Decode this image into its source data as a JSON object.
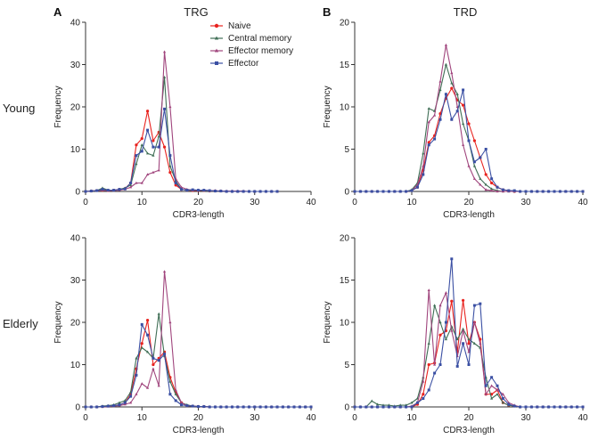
{
  "figure": {
    "panel_a": "A",
    "panel_b": "B",
    "columns": [
      "TRG",
      "TRD"
    ],
    "rows": [
      "Young",
      "Elderly"
    ]
  },
  "legend": [
    {
      "name": "Naive",
      "color": "#e8231f",
      "icon": "circle-marker-icon"
    },
    {
      "name": "Central memory",
      "color": "#3f6e55",
      "icon": "triangle-marker-icon"
    },
    {
      "name": "Effector memory",
      "color": "#a0457d",
      "icon": "triangle-marker-icon"
    },
    {
      "name": "Effector",
      "color": "#3a4fa3",
      "icon": "square-marker-icon"
    }
  ],
  "chart_data": [
    {
      "type": "line",
      "title": "TRG",
      "row": "Young",
      "xlabel": "CDR3-length",
      "ylabel": "Frequency",
      "xlim": [
        0,
        40
      ],
      "ylim": [
        0,
        40
      ],
      "xticks": [
        0,
        10,
        20,
        30,
        40
      ],
      "yticks": [
        0,
        10,
        20,
        30,
        40
      ],
      "x": [
        0,
        1,
        2,
        3,
        4,
        5,
        6,
        7,
        8,
        9,
        10,
        11,
        12,
        13,
        14,
        15,
        16,
        17,
        18,
        19,
        20,
        21,
        22,
        23,
        24,
        25,
        26,
        27,
        28,
        29,
        30,
        31,
        32,
        33,
        34
      ],
      "series": [
        {
          "name": "Naive",
          "values": [
            0,
            0.1,
            0.2,
            0.3,
            0.2,
            0.3,
            0.5,
            0.7,
            2,
            11,
            12.5,
            19,
            12,
            14,
            10.5,
            4.5,
            1.5,
            0.5,
            0.3,
            0.2,
            0.2,
            0.2,
            0.1,
            0.1,
            0.1,
            0,
            0,
            0,
            0,
            0,
            0,
            0,
            0,
            0,
            0
          ]
        },
        {
          "name": "Central memory",
          "values": [
            0,
            0.1,
            0.2,
            0.8,
            0.3,
            0.2,
            0.5,
            0.8,
            1.5,
            6.5,
            11,
            9,
            8.5,
            13,
            27,
            6,
            2.5,
            0.5,
            0.3,
            0.3,
            0.3,
            0.2,
            0.1,
            0.1,
            0.1,
            0,
            0,
            0,
            0,
            0,
            0,
            0,
            0,
            0,
            0
          ]
        },
        {
          "name": "Effector memory",
          "values": [
            0,
            0.1,
            0.2,
            0.3,
            0.2,
            0.2,
            0.3,
            0.5,
            1,
            2,
            2,
            4,
            4.5,
            5,
            33,
            20,
            3,
            1,
            0.5,
            0.3,
            0.3,
            0.3,
            0.2,
            0.2,
            0.1,
            0.1,
            0.1,
            0.1,
            0.1,
            0,
            0,
            0,
            0,
            0,
            0
          ]
        },
        {
          "name": "Effector",
          "values": [
            0,
            0.1,
            0.2,
            0.5,
            0.3,
            0.3,
            0.5,
            0.6,
            2,
            8.5,
            9.5,
            14.5,
            10.5,
            10.5,
            19.5,
            8.5,
            2,
            0.5,
            0.3,
            0.4,
            0.3,
            0.3,
            0.2,
            0.1,
            0.1,
            0,
            0,
            0,
            0,
            0,
            0,
            0,
            0,
            0,
            0
          ]
        }
      ]
    },
    {
      "type": "line",
      "title": "TRD",
      "row": "Young",
      "xlabel": "CDR3-length",
      "ylabel": "Frequency",
      "xlim": [
        0,
        40
      ],
      "ylim": [
        0,
        20
      ],
      "xticks": [
        0,
        10,
        20,
        30,
        40
      ],
      "yticks": [
        0,
        5,
        10,
        15,
        20
      ],
      "x": [
        0,
        1,
        2,
        3,
        4,
        5,
        6,
        7,
        8,
        9,
        10,
        11,
        12,
        13,
        14,
        15,
        16,
        17,
        18,
        19,
        20,
        21,
        22,
        23,
        24,
        25,
        26,
        27,
        28,
        29,
        30,
        31,
        32,
        33,
        34,
        35,
        36,
        37,
        38,
        39,
        40
      ],
      "series": [
        {
          "name": "Naive",
          "values": [
            0,
            0,
            0,
            0,
            0,
            0,
            0,
            0,
            0,
            0,
            0.1,
            0.5,
            2.5,
            5.8,
            6.6,
            9.2,
            11,
            12.2,
            10.8,
            10.2,
            8,
            6,
            4,
            2,
            1,
            0.5,
            0.2,
            0.1,
            0,
            0,
            0,
            0,
            0,
            0,
            0,
            0,
            0,
            0,
            0,
            0,
            0
          ]
        },
        {
          "name": "Central memory",
          "values": [
            0,
            0,
            0,
            0,
            0,
            0,
            0,
            0,
            0,
            0,
            0.2,
            1,
            4.5,
            9.8,
            9.5,
            12,
            15,
            12.8,
            11.5,
            8,
            6,
            3,
            1.5,
            0.8,
            0.3,
            0.1,
            0,
            0,
            0,
            0,
            0,
            0,
            0,
            0,
            0,
            0,
            0,
            0,
            0,
            0,
            0
          ]
        },
        {
          "name": "Effector memory",
          "values": [
            0,
            0,
            0,
            0,
            0,
            0,
            0,
            0,
            0,
            0,
            0.1,
            0.8,
            3,
            8.2,
            9,
            13,
            17.3,
            14,
            10,
            5.5,
            3,
            1.5,
            0.8,
            0.2,
            0.1,
            0,
            0,
            0,
            0,
            0,
            0,
            0,
            0,
            0,
            0,
            0,
            0,
            0,
            0,
            0,
            0
          ]
        },
        {
          "name": "Effector",
          "values": [
            0,
            0,
            0,
            0,
            0,
            0,
            0,
            0,
            0,
            0,
            0.1,
            0.5,
            2,
            5.5,
            6.2,
            8.5,
            11.5,
            8.5,
            9.5,
            12,
            6,
            3.5,
            4,
            5,
            1.5,
            0.5,
            0.2,
            0.1,
            0.1,
            0,
            0,
            0,
            0,
            0,
            0,
            0,
            0,
            0,
            0,
            0,
            0
          ]
        }
      ]
    },
    {
      "type": "line",
      "title": "TRG",
      "row": "Elderly",
      "xlabel": "CDR3-length",
      "ylabel": "Frequency",
      "xlim": [
        0,
        40
      ],
      "ylim": [
        0,
        40
      ],
      "xticks": [
        0,
        10,
        20,
        30,
        40
      ],
      "yticks": [
        0,
        10,
        20,
        30,
        40
      ],
      "x": [
        0,
        1,
        2,
        3,
        4,
        5,
        6,
        7,
        8,
        9,
        10,
        11,
        12,
        13,
        14,
        15,
        16,
        17,
        18,
        19,
        20,
        21,
        22,
        23,
        24,
        25,
        26,
        27,
        28,
        29,
        30,
        31,
        32,
        33,
        34,
        35,
        36,
        37,
        38,
        39,
        40
      ],
      "series": [
        {
          "name": "Naive",
          "values": [
            0,
            0,
            0,
            0.1,
            0.2,
            0.3,
            0.5,
            1,
            3,
            9,
            15,
            20.5,
            10,
            11.5,
            13,
            7,
            3.5,
            1,
            0.3,
            0.2,
            0.1,
            0.1,
            0,
            0,
            0,
            0,
            0,
            0,
            0,
            0,
            0,
            0,
            0,
            0,
            0,
            0,
            0,
            0,
            0,
            0,
            0
          ]
        },
        {
          "name": "Central memory",
          "values": [
            0,
            0,
            0,
            0.2,
            0.3,
            0.5,
            1,
            1.5,
            3.5,
            11.5,
            14,
            13,
            11.5,
            22,
            12,
            6,
            3,
            1,
            0.5,
            0.2,
            0.1,
            0.1,
            0,
            0,
            0,
            0,
            0,
            0,
            0,
            0,
            0,
            0,
            0,
            0,
            0,
            0,
            0,
            0,
            0,
            0,
            0
          ]
        },
        {
          "name": "Effector memory",
          "values": [
            0,
            0,
            0,
            0,
            0.1,
            0.2,
            0.3,
            0.6,
            1,
            3,
            5.5,
            4.5,
            9,
            5,
            32,
            20,
            4,
            1,
            0.3,
            0.2,
            0.1,
            0.1,
            0,
            0,
            0,
            0,
            0,
            0,
            0,
            0,
            0,
            0,
            0,
            0,
            0,
            0,
            0,
            0,
            0,
            0,
            0
          ]
        },
        {
          "name": "Effector",
          "values": [
            0,
            0,
            0,
            0.1,
            0.2,
            0.3,
            0.5,
            1,
            2.5,
            7.5,
            19.5,
            17,
            11.5,
            11,
            12.5,
            3,
            1.5,
            0.5,
            0.3,
            0.2,
            0.1,
            0.1,
            0,
            0,
            0,
            0,
            0,
            0,
            0,
            0,
            0,
            0,
            0,
            0,
            0,
            0,
            0,
            0,
            0,
            0,
            0
          ]
        }
      ]
    },
    {
      "type": "line",
      "title": "TRD",
      "row": "Elderly",
      "xlabel": "CDR3-length",
      "ylabel": "Frequency",
      "xlim": [
        0,
        40
      ],
      "ylim": [
        0,
        20
      ],
      "xticks": [
        0,
        10,
        20,
        30,
        40
      ],
      "yticks": [
        0,
        5,
        10,
        15,
        20
      ],
      "x": [
        0,
        1,
        2,
        3,
        4,
        5,
        6,
        7,
        8,
        9,
        10,
        11,
        12,
        13,
        14,
        15,
        16,
        17,
        18,
        19,
        20,
        21,
        22,
        23,
        24,
        25,
        26,
        27,
        28,
        29,
        30,
        31,
        32,
        33,
        34,
        35,
        36,
        37,
        38,
        39,
        40
      ],
      "series": [
        {
          "name": "Naive",
          "values": [
            0,
            0,
            0,
            0,
            0,
            0,
            0,
            0,
            0,
            0,
            0,
            0.3,
            1.5,
            5,
            5.2,
            8.5,
            9,
            12.5,
            6.5,
            12.6,
            7.5,
            10,
            8,
            1.5,
            1.5,
            2,
            0.5,
            0.2,
            0.1,
            0,
            0,
            0,
            0,
            0,
            0,
            0,
            0,
            0,
            0,
            0,
            0
          ]
        },
        {
          "name": "Central memory",
          "values": [
            0,
            0,
            0,
            0.7,
            0.3,
            0.2,
            0.2,
            0.1,
            0.2,
            0.2,
            0.5,
            1,
            3.5,
            7.5,
            12,
            10,
            8,
            9.5,
            8,
            9.2,
            8,
            7.5,
            7,
            3.5,
            1,
            1.5,
            0.5,
            0.2,
            0.1,
            0,
            0,
            0,
            0,
            0,
            0,
            0,
            0,
            0,
            0,
            0,
            0
          ]
        },
        {
          "name": "Effector memory",
          "values": [
            0,
            0,
            0,
            0,
            0,
            0,
            0,
            0,
            0,
            0,
            0.1,
            0.5,
            3,
            13.8,
            5,
            12,
            13.5,
            9,
            6,
            9,
            6.5,
            10,
            7.5,
            1.5,
            2.5,
            2,
            1.5,
            0.5,
            0.2,
            0,
            0,
            0,
            0,
            0,
            0,
            0,
            0,
            0,
            0,
            0,
            0
          ]
        },
        {
          "name": "Effector",
          "values": [
            0,
            0,
            0,
            0,
            0,
            0,
            0,
            0,
            0,
            0,
            0,
            0.5,
            1,
            2,
            4,
            5,
            10,
            17.5,
            4.8,
            7.5,
            5,
            12,
            12.2,
            2.5,
            3.5,
            2.5,
            1,
            0.3,
            0.1,
            0,
            0,
            0,
            0,
            0,
            0,
            0,
            0,
            0,
            0,
            0,
            0
          ]
        }
      ]
    }
  ]
}
